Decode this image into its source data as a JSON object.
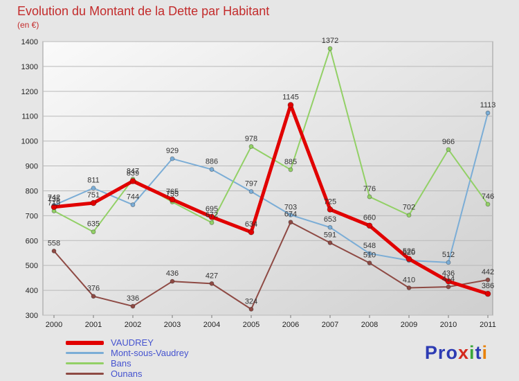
{
  "header": {
    "title": "Evolution du Montant de la Dette par Habitant",
    "subtitle": "(en €)",
    "title_color": "#c32b2b"
  },
  "chart_data": {
    "type": "line",
    "x": [
      2000,
      2001,
      2002,
      2003,
      2004,
      2005,
      2006,
      2007,
      2008,
      2009,
      2010,
      2011
    ],
    "ylim": [
      300,
      1400
    ],
    "ytick_step": 100,
    "grid": true,
    "legend_position": "bottom-left",
    "series": [
      {
        "name": "VAUDREY",
        "color": "#e10000",
        "line_width": 5,
        "values": [
          735,
          751,
          839,
          765,
          695,
          634,
          1145,
          725,
          660,
          526,
          436,
          386
        ]
      },
      {
        "name": "Mont-sous-Vaudrey",
        "color": "#7badd6",
        "line_width": 2,
        "values": [
          742,
          811,
          744,
          929,
          886,
          797,
          703,
          653,
          548,
          520,
          512,
          1113
        ]
      },
      {
        "name": "Bans",
        "color": "#92d066",
        "line_width": 2,
        "values": [
          719,
          635,
          847,
          755,
          672,
          978,
          885,
          1372,
          776,
          702,
          966,
          746
        ]
      },
      {
        "name": "Ounans",
        "color": "#8e4a44",
        "line_width": 2,
        "values": [
          558,
          376,
          336,
          436,
          427,
          324,
          674,
          591,
          510,
          410,
          414,
          442
        ]
      }
    ],
    "label_color": "#333333",
    "axis_text_color": "#222222"
  },
  "legend": {
    "text_color": "#4553cf"
  },
  "logo": {
    "letters": [
      {
        "ch": "P",
        "color": "#2d3bb3"
      },
      {
        "ch": "r",
        "color": "#2d3bb3"
      },
      {
        "ch": "o",
        "color": "#2d3bb3"
      },
      {
        "ch": "x",
        "color": "#d42a1e"
      },
      {
        "ch": "i",
        "color": "#3aa63a"
      },
      {
        "ch": "t",
        "color": "#2d3bb3"
      },
      {
        "ch": "i",
        "color": "#e8820c"
      }
    ]
  }
}
